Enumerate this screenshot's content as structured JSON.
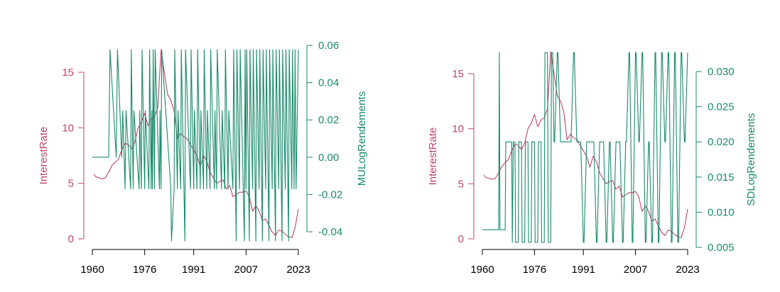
{
  "colors": {
    "interest": "#c0456b",
    "rendement": "#1a8a6c",
    "axis": "#000000"
  },
  "chart_data": [
    {
      "type": "line",
      "title": "",
      "x_ticks": [
        1960,
        1976,
        1991,
        2007,
        2023
      ],
      "xlim": [
        1960,
        2023
      ],
      "left_axis": {
        "label": "InterestRate",
        "ticks": [
          0,
          5,
          10,
          15
        ],
        "range": [
          0,
          17.2
        ]
      },
      "right_axis": {
        "label": "MULogRendements",
        "ticks": [
          "-0.04",
          "-0.02",
          "0.00",
          "0.02",
          "0.04",
          "0.06"
        ],
        "range": [
          -0.045,
          0.06
        ]
      },
      "series": [
        {
          "name": "InterestRate",
          "axis": "left",
          "x": [
            1960.5,
            1961,
            1962,
            1963,
            1964,
            1965,
            1966,
            1967,
            1968,
            1969,
            1970,
            1971,
            1972,
            1973,
            1974,
            1975,
            1976,
            1977,
            1978,
            1979,
            1980,
            1981,
            1982,
            1983,
            1984,
            1985,
            1986,
            1987,
            1988,
            1989,
            1990,
            1991,
            1992,
            1993,
            1994,
            1995,
            1996,
            1997,
            1998,
            1999,
            2000,
            2001,
            2002,
            2003,
            2004,
            2005,
            2006,
            2007,
            2008,
            2009,
            2010,
            2011,
            2012,
            2013,
            2014,
            2015,
            2016,
            2017,
            2018,
            2019,
            2020,
            2021,
            2022,
            2023
          ],
          "y": [
            5.8,
            5.6,
            5.5,
            5.4,
            5.5,
            6.0,
            6.6,
            6.9,
            7.2,
            8.0,
            8.6,
            8.5,
            8.1,
            8.7,
            10.0,
            10.5,
            11.3,
            10.2,
            10.8,
            11.0,
            11.8,
            17.0,
            15.0,
            13.0,
            12.5,
            11.5,
            9.0,
            9.5,
            9.2,
            9.0,
            8.5,
            8.0,
            7.5,
            6.5,
            7.5,
            7.0,
            6.0,
            5.5,
            5.0,
            5.2,
            5.3,
            4.5,
            4.8,
            3.8,
            4.0,
            4.2,
            4.2,
            4.3,
            3.8,
            2.5,
            3.0,
            2.5,
            1.6,
            1.8,
            1.2,
            0.6,
            0.3,
            0.8,
            0.7,
            0.4,
            0.2,
            0.1,
            1.0,
            2.7
          ]
        },
        {
          "name": "MULogRendements",
          "axis": "right",
          "x": [
            1960.0,
            1965.0,
            1965.4,
            1967.3,
            1967.7,
            1969.0,
            1969.3,
            1970.0,
            1970.3,
            1971.7,
            1971.9,
            1972.5,
            1972.7,
            1974.3,
            1974.5,
            1975.0,
            1975.2,
            1976.0,
            1976.2,
            1977.3,
            1977.5,
            1978.0,
            1978.2,
            1978.4,
            1978.6,
            1979.0,
            1979.2,
            1980.5,
            1980.7,
            1981.0,
            1981.2,
            1984.0,
            1984.2,
            1985.0,
            1985.2,
            1986.0,
            1986.2,
            1987.0,
            1987.2,
            1988.3,
            1988.5,
            1990.0,
            1990.2,
            1991.0,
            1991.2,
            1992.0,
            1992.2,
            1993.0,
            1993.2,
            1994.0,
            1994.2,
            1995.0,
            1995.2,
            1996.0,
            1996.2,
            1997.3,
            1997.5,
            1998.0,
            1998.2,
            1999.5,
            1999.7,
            2000.5,
            2000.7,
            2001.5,
            2001.7,
            2003.0,
            2003.2,
            2004.0,
            2004.2,
            2005.0,
            2005.2,
            2006.5,
            2006.7,
            2007.0,
            2007.2,
            2008.0,
            2008.2,
            2009.0,
            2009.2,
            2010.0,
            2010.2,
            2011.0,
            2011.2,
            2012.0,
            2012.2,
            2013.0,
            2013.2,
            2014.0,
            2014.2,
            2015.0,
            2015.2,
            2016.0,
            2016.2,
            2017.0,
            2017.2,
            2018.0,
            2018.2,
            2019.0,
            2019.2,
            2020.0,
            2020.2,
            2021.0,
            2021.2,
            2021.7,
            2022.0,
            2022.3,
            2023.0
          ],
          "y": [
            0.0,
            0.0,
            0.06,
            0.0,
            0.06,
            0.0,
            0.025,
            -0.017,
            0.025,
            -0.017,
            0.06,
            -0.017,
            0.025,
            -0.017,
            0.025,
            -0.017,
            0.06,
            -0.017,
            0.025,
            -0.017,
            0.06,
            -0.017,
            0.025,
            -0.017,
            0.06,
            -0.017,
            0.06,
            -0.017,
            0.025,
            -0.017,
            0.06,
            -0.017,
            -0.045,
            -0.017,
            0.06,
            -0.017,
            0.025,
            -0.017,
            0.06,
            -0.045,
            0.06,
            -0.017,
            0.06,
            -0.017,
            0.025,
            -0.017,
            0.06,
            -0.017,
            0.025,
            -0.017,
            0.06,
            -0.017,
            0.025,
            -0.017,
            0.06,
            -0.017,
            0.025,
            -0.017,
            0.06,
            -0.017,
            0.025,
            -0.017,
            0.06,
            -0.017,
            0.025,
            -0.017,
            0.06,
            -0.045,
            0.06,
            -0.017,
            0.06,
            -0.045,
            0.06,
            -0.017,
            0.06,
            -0.045,
            0.06,
            -0.017,
            0.06,
            -0.045,
            0.06,
            -0.017,
            0.06,
            -0.045,
            0.06,
            -0.017,
            0.06,
            -0.045,
            0.06,
            -0.017,
            0.06,
            -0.045,
            0.06,
            -0.017,
            0.06,
            -0.045,
            0.06,
            -0.017,
            0.06,
            -0.045,
            0.06,
            -0.017,
            0.06,
            -0.017,
            0.06,
            -0.017,
            0.06
          ]
        }
      ]
    },
    {
      "type": "line",
      "title": "",
      "x_ticks": [
        1960,
        1976,
        1991,
        2007,
        2023
      ],
      "xlim": [
        1960,
        2023
      ],
      "left_axis": {
        "label": "InterestRate",
        "ticks": [
          0,
          5,
          10,
          15
        ],
        "range": [
          0,
          17.2
        ]
      },
      "right_axis": {
        "label": "SDLogRendements",
        "ticks": [
          "0.005",
          "0.010",
          "0.015",
          "0.020",
          "0.025",
          "0.030"
        ],
        "range": [
          0.005,
          0.0327
        ]
      },
      "series": [
        {
          "name": "InterestRate",
          "axis": "left",
          "x": [
            1960.5,
            1961,
            1962,
            1963,
            1964,
            1965,
            1966,
            1967,
            1968,
            1969,
            1970,
            1971,
            1972,
            1973,
            1974,
            1975,
            1976,
            1977,
            1978,
            1979,
            1980,
            1981,
            1982,
            1983,
            1984,
            1985,
            1986,
            1987,
            1988,
            1989,
            1990,
            1991,
            1992,
            1993,
            1994,
            1995,
            1996,
            1997,
            1998,
            1999,
            2000,
            2001,
            2002,
            2003,
            2004,
            2005,
            2006,
            2007,
            2008,
            2009,
            2010,
            2011,
            2012,
            2013,
            2014,
            2015,
            2016,
            2017,
            2018,
            2019,
            2020,
            2021,
            2022,
            2023
          ],
          "y": [
            5.8,
            5.6,
            5.5,
            5.4,
            5.5,
            6.0,
            6.6,
            6.9,
            7.2,
            8.0,
            8.6,
            8.5,
            8.1,
            8.7,
            10.0,
            10.5,
            11.3,
            10.2,
            10.8,
            11.0,
            11.8,
            17.0,
            15.0,
            13.0,
            12.5,
            11.5,
            9.0,
            9.5,
            9.2,
            9.0,
            8.5,
            8.0,
            7.5,
            6.5,
            7.5,
            7.0,
            6.0,
            5.5,
            5.0,
            5.2,
            5.3,
            4.5,
            4.8,
            3.8,
            4.0,
            4.2,
            4.2,
            4.3,
            3.8,
            2.5,
            3.0,
            2.5,
            1.6,
            1.8,
            1.2,
            0.6,
            0.3,
            0.8,
            0.7,
            0.4,
            0.2,
            0.1,
            1.0,
            2.7
          ]
        },
        {
          "name": "SDLogRendements",
          "axis": "right",
          "x": [
            1960.0,
            1965.0,
            1965.2,
            1965.4,
            1967.0,
            1967.2,
            1969.0,
            1969.2,
            1969.5,
            1970.0,
            1970.2,
            1971.0,
            1971.2,
            1972.0,
            1972.2,
            1973.0,
            1973.2,
            1974.0,
            1974.2,
            1975.0,
            1975.2,
            1976.0,
            1976.2,
            1977.0,
            1977.2,
            1978.0,
            1978.2,
            1979.0,
            1979.2,
            1980.0,
            1980.2,
            1981.0,
            1981.2,
            1981.6,
            1982.0,
            1982.2,
            1983.0,
            1983.2,
            1984.0,
            1984.2,
            1985.0,
            1985.2,
            1986.0,
            1986.2,
            1987.0,
            1987.2,
            1988.0,
            1988.2,
            1989.0,
            1989.2,
            1990.0,
            1990.2,
            1991.0,
            1991.2,
            1992.0,
            1992.2,
            1993.0,
            1993.2,
            1994.0,
            1994.2,
            1995.0,
            1995.2,
            1996.0,
            1996.2,
            1997.0,
            1997.2,
            1998.0,
            1998.2,
            1999.0,
            1999.2,
            2000.0,
            2000.2,
            2001.0,
            2001.2,
            2002.0,
            2002.2,
            2003.0,
            2003.2,
            2004.0,
            2004.2,
            2005.0,
            2005.2,
            2006.0,
            2006.2,
            2007.0,
            2007.2,
            2008.0,
            2008.2,
            2009.0,
            2009.2,
            2010.0,
            2010.2,
            2011.0,
            2011.2,
            2012.0,
            2012.2,
            2013.0,
            2013.2,
            2014.0,
            2014.2,
            2015.0,
            2015.2,
            2016.0,
            2016.2,
            2017.0,
            2017.2,
            2018.0,
            2018.2,
            2019.0,
            2019.2,
            2020.0,
            2020.2,
            2021.0,
            2021.2,
            2022.0,
            2022.2,
            2023.0
          ],
          "y": [
            0.0075,
            0.0075,
            0.0327,
            0.0075,
            0.0075,
            0.02,
            0.02,
            0.005,
            0.02,
            0.02,
            0.005,
            0.005,
            0.02,
            0.02,
            0.005,
            0.005,
            0.02,
            0.02,
            0.005,
            0.005,
            0.02,
            0.02,
            0.005,
            0.005,
            0.02,
            0.02,
            0.005,
            0.005,
            0.0327,
            0.0327,
            0.005,
            0.005,
            0.0327,
            0.0327,
            0.02,
            0.02,
            0.0327,
            0.0327,
            0.02,
            0.02,
            0.02,
            0.02,
            0.02,
            0.02,
            0.02,
            0.02,
            0.0327,
            0.0327,
            0.02,
            0.02,
            0.02,
            0.02,
            0.005,
            0.005,
            0.02,
            0.02,
            0.02,
            0.02,
            0.02,
            0.02,
            0.005,
            0.005,
            0.02,
            0.02,
            0.02,
            0.02,
            0.005,
            0.005,
            0.02,
            0.02,
            0.005,
            0.005,
            0.02,
            0.02,
            0.02,
            0.02,
            0.005,
            0.005,
            0.02,
            0.02,
            0.0327,
            0.0327,
            0.005,
            0.005,
            0.0327,
            0.0327,
            0.02,
            0.02,
            0.0327,
            0.0327,
            0.005,
            0.005,
            0.02,
            0.02,
            0.005,
            0.005,
            0.0327,
            0.0327,
            0.005,
            0.005,
            0.0327,
            0.0327,
            0.02,
            0.02,
            0.0327,
            0.0327,
            0.005,
            0.005,
            0.0327,
            0.0327,
            0.005,
            0.005,
            0.0327,
            0.0327,
            0.02,
            0.02,
            0.0327
          ]
        }
      ]
    }
  ]
}
